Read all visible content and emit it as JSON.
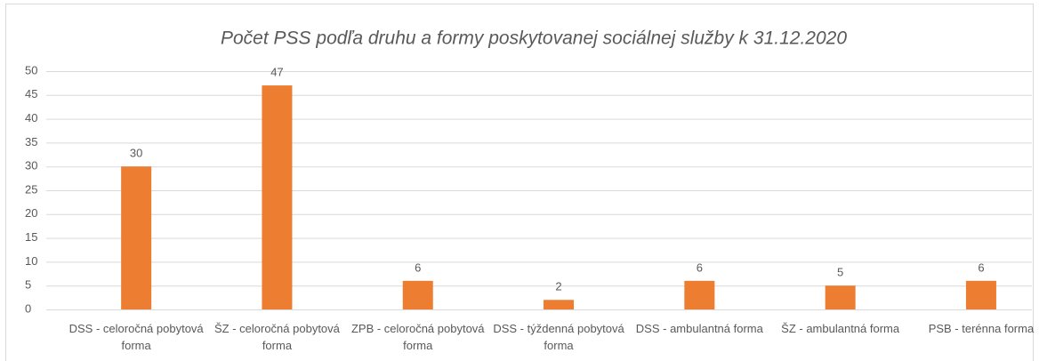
{
  "chart_data": {
    "type": "bar",
    "title": "Počet PSS podľa druhu a formy poskytovanej sociálnej služby k 31.12.2020",
    "categories": [
      "DSS - celoročná pobytová forma",
      "ŠZ - celoročná pobytová forma",
      "ZPB - celoročná pobytová forma",
      "DSS - týždenná pobytová forma",
      "DSS - ambulantná forma",
      "ŠZ - ambulantná forma",
      "PSB - terénna forma"
    ],
    "values": [
      30,
      47,
      6,
      2,
      6,
      5,
      6
    ],
    "color": "#ed7d31",
    "ylim": [
      0,
      50
    ],
    "yticks": [
      0,
      5,
      10,
      15,
      20,
      25,
      30,
      35,
      40,
      45,
      50
    ],
    "grid": true
  }
}
